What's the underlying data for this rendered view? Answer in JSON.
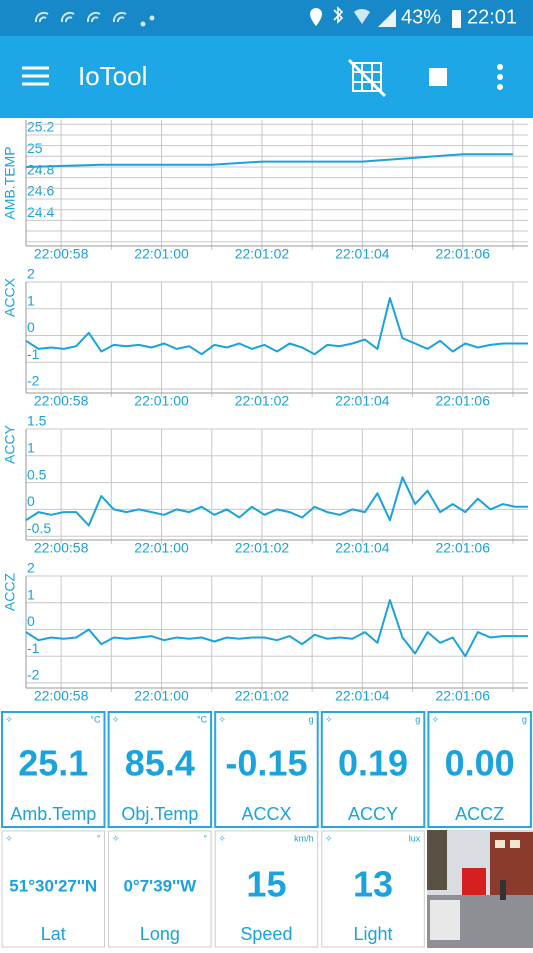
{
  "status_bar": {
    "battery": "43%",
    "time": "22:01"
  },
  "app_bar": {
    "title": "IoTool"
  },
  "chart_data": [
    {
      "type": "line",
      "ylabel": "AMB.TEMP",
      "color": "#1aa3dc",
      "grid": true,
      "x": [
        57.3,
        58.8,
        61,
        62,
        64,
        66,
        67
      ],
      "values": [
        24.9,
        24.92,
        24.92,
        24.95,
        24.95,
        25.02,
        25.02
      ],
      "xlim": [
        57.3,
        67.3
      ],
      "xticks": [
        {
          "value": 58,
          "label": "22:00:58"
        },
        {
          "value": 59,
          "label": null
        },
        {
          "value": 60,
          "label": "22:01:00"
        },
        {
          "value": 61,
          "label": null
        },
        {
          "value": 62,
          "label": "22:01:02"
        },
        {
          "value": 63,
          "label": null
        },
        {
          "value": 64,
          "label": "22:01:04"
        },
        {
          "value": 65,
          "label": null
        },
        {
          "value": 66,
          "label": "22:01:06"
        },
        {
          "value": 67,
          "label": null
        }
      ],
      "ylim": [
        24.16,
        25.34
      ],
      "yticks": [
        {
          "value": 24.2,
          "label": null
        },
        {
          "value": 24.3,
          "label": null
        },
        24.4,
        {
          "value": 24.5,
          "label": null
        },
        24.6,
        {
          "value": 24.7,
          "label": null
        },
        24.8,
        {
          "value": 24.9,
          "label": null
        },
        25,
        {
          "value": 25.1,
          "label": null
        },
        25.2,
        {
          "value": 25.3,
          "label": null
        }
      ]
    },
    {
      "type": "line",
      "ylabel": "ACCX",
      "color": "#1aa3dc",
      "grid": true,
      "x": [
        57.3,
        57.55,
        57.8,
        58.05,
        58.3,
        58.55,
        58.8,
        59.05,
        59.3,
        59.55,
        59.8,
        60.05,
        60.3,
        60.55,
        60.8,
        61.05,
        61.3,
        61.55,
        61.8,
        62.05,
        62.3,
        62.55,
        62.8,
        63.05,
        63.3,
        63.55,
        63.8,
        64.05,
        64.3,
        64.55,
        64.8,
        65.05,
        65.3,
        65.55,
        65.8,
        66.05,
        66.3,
        66.55,
        66.8,
        67.05,
        67.3
      ],
      "values": [
        -0.2,
        -0.5,
        -0.45,
        -0.5,
        -0.4,
        0.1,
        -0.6,
        -0.35,
        -0.4,
        -0.35,
        -0.45,
        -0.3,
        -0.5,
        -0.4,
        -0.7,
        -0.35,
        -0.45,
        -0.3,
        -0.5,
        -0.35,
        -0.6,
        -0.3,
        -0.45,
        -0.7,
        -0.35,
        -0.4,
        -0.3,
        -0.15,
        -0.5,
        1.4,
        -0.1,
        -0.3,
        -0.5,
        -0.2,
        -0.6,
        -0.3,
        -0.45,
        -0.35,
        -0.3,
        -0.3,
        -0.3
      ],
      "xlim": [
        57.3,
        67.3
      ],
      "xticks": [
        {
          "value": 58,
          "label": "22:00:58"
        },
        {
          "value": 59,
          "label": null
        },
        {
          "value": 60,
          "label": "22:01:00"
        },
        {
          "value": 61,
          "label": null
        },
        {
          "value": 62,
          "label": "22:01:02"
        },
        {
          "value": 63,
          "label": null
        },
        {
          "value": 64,
          "label": "22:01:04"
        },
        {
          "value": 65,
          "label": null
        },
        {
          "value": 66,
          "label": "22:01:06"
        },
        {
          "value": 67,
          "label": null
        }
      ],
      "ylim": [
        -2.15,
        2
      ],
      "yticks": [
        -2,
        -1,
        0,
        1,
        2
      ]
    },
    {
      "type": "line",
      "ylabel": "ACCY",
      "color": "#1aa3dc",
      "grid": true,
      "x": [
        57.3,
        57.55,
        57.8,
        58.05,
        58.3,
        58.55,
        58.8,
        59.05,
        59.3,
        59.55,
        59.8,
        60.05,
        60.3,
        60.55,
        60.8,
        61.05,
        61.3,
        61.55,
        61.8,
        62.05,
        62.3,
        62.55,
        62.8,
        63.05,
        63.3,
        63.55,
        63.8,
        64.05,
        64.3,
        64.55,
        64.8,
        65.05,
        65.3,
        65.55,
        65.8,
        66.05,
        66.3,
        66.55,
        66.8,
        67.05,
        67.3
      ],
      "values": [
        -0.2,
        -0.05,
        -0.1,
        -0.05,
        -0.05,
        -0.3,
        0.25,
        0,
        -0.05,
        0,
        -0.05,
        -0.1,
        0,
        -0.05,
        0.05,
        -0.1,
        0,
        -0.15,
        0.05,
        -0.1,
        0,
        -0.05,
        -0.15,
        0.05,
        -0.05,
        -0.1,
        0,
        -0.05,
        0.3,
        -0.2,
        0.6,
        0.1,
        0.35,
        -0.05,
        0.1,
        -0.05,
        0.2,
        0,
        0.1,
        0.05,
        0.05
      ],
      "xlim": [
        57.3,
        67.3
      ],
      "xticks": [
        {
          "value": 58,
          "label": "22:00:58"
        },
        {
          "value": 59,
          "label": null
        },
        {
          "value": 60,
          "label": "22:01:00"
        },
        {
          "value": 61,
          "label": null
        },
        {
          "value": 62,
          "label": "22:01:02"
        },
        {
          "value": 63,
          "label": null
        },
        {
          "value": 64,
          "label": "22:01:04"
        },
        {
          "value": 65,
          "label": null
        },
        {
          "value": 66,
          "label": "22:01:06"
        },
        {
          "value": 67,
          "label": null
        }
      ],
      "ylim": [
        -0.57,
        1.5
      ],
      "yticks": [
        -0.5,
        0,
        0.5,
        1,
        1.5
      ]
    },
    {
      "type": "line",
      "ylabel": "ACCZ",
      "color": "#1aa3dc",
      "grid": true,
      "x": [
        57.3,
        57.55,
        57.8,
        58.05,
        58.3,
        58.55,
        58.8,
        59.05,
        59.3,
        59.55,
        59.8,
        60.05,
        60.3,
        60.55,
        60.8,
        61.05,
        61.3,
        61.55,
        61.8,
        62.05,
        62.3,
        62.55,
        62.8,
        63.05,
        63.3,
        63.55,
        63.8,
        64.05,
        64.3,
        64.55,
        64.8,
        65.05,
        65.3,
        65.55,
        65.8,
        66.05,
        66.3,
        66.55,
        66.8,
        67.05,
        67.3
      ],
      "values": [
        -0.1,
        -0.4,
        -0.3,
        -0.35,
        -0.3,
        0,
        -0.55,
        -0.3,
        -0.35,
        -0.3,
        -0.25,
        -0.4,
        -0.3,
        -0.35,
        -0.3,
        -0.45,
        -0.3,
        -0.35,
        -0.3,
        -0.3,
        -0.4,
        -0.25,
        -0.55,
        -0.2,
        -0.35,
        -0.3,
        -0.35,
        -0.1,
        -0.5,
        1.1,
        -0.3,
        -0.9,
        -0.1,
        -0.5,
        -0.3,
        -1,
        -0.1,
        -0.3,
        -0.25,
        -0.25,
        -0.25
      ],
      "xlim": [
        57.3,
        67.3
      ],
      "xticks": [
        {
          "value": 58,
          "label": "22:00:58"
        },
        {
          "value": 59,
          "label": null
        },
        {
          "value": 60,
          "label": "22:01:00"
        },
        {
          "value": 61,
          "label": null
        },
        {
          "value": 62,
          "label": "22:01:02"
        },
        {
          "value": 63,
          "label": null
        },
        {
          "value": 64,
          "label": "22:01:04"
        },
        {
          "value": 65,
          "label": null
        },
        {
          "value": 66,
          "label": "22:01:06"
        },
        {
          "value": 67,
          "label": null
        }
      ],
      "ylim": [
        -2.19,
        2
      ],
      "yticks": [
        -2,
        -1,
        0,
        1,
        2
      ]
    }
  ],
  "tiles": [
    {
      "value": "25.1",
      "label": "Amb.Temp",
      "unit": "°C"
    },
    {
      "value": "85.4",
      "label": "Obj.Temp",
      "unit": "°C"
    },
    {
      "value": "-0.15",
      "label": "ACCX",
      "unit": "g"
    },
    {
      "value": "0.19",
      "label": "ACCY",
      "unit": "g"
    },
    {
      "value": "0.00",
      "label": "ACCZ",
      "unit": "g"
    },
    {
      "value": "51°30'27''N",
      "label": "Lat",
      "unit": "°"
    },
    {
      "value": "0°7'39''W",
      "label": "Long",
      "unit": "°"
    },
    {
      "value": "15",
      "label": "Speed",
      "unit": "km/h"
    },
    {
      "value": "13",
      "label": "Light",
      "unit": "lux"
    }
  ]
}
